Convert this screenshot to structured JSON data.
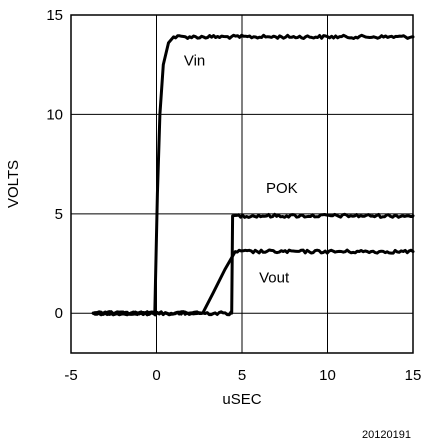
{
  "chart_data": {
    "type": "line",
    "title": "",
    "xlabel": "uSEC",
    "ylabel": "VOLTS",
    "xlim": [
      -5,
      15
    ],
    "ylim": [
      -2,
      15
    ],
    "grid": true,
    "x_ticks": [
      -5,
      0,
      5,
      10,
      15
    ],
    "x_tick_labels": [
      "-5",
      "0",
      "5",
      "10",
      "15"
    ],
    "y_ticks": [
      0,
      5,
      10,
      15
    ],
    "y_tick_labels": [
      "0",
      "5",
      "10",
      "15"
    ],
    "series": [
      {
        "name": "Vin",
        "points": [
          [
            -3.7,
            0
          ],
          [
            -0.1,
            0
          ],
          [
            0.05,
            6
          ],
          [
            0.2,
            10
          ],
          [
            0.4,
            12.5
          ],
          [
            0.7,
            13.6
          ],
          [
            1.0,
            13.9
          ],
          [
            15,
            13.9
          ]
        ]
      },
      {
        "name": "POK",
        "points": [
          [
            -3.7,
            0
          ],
          [
            4.4,
            0
          ],
          [
            4.45,
            4.9
          ],
          [
            15,
            4.9
          ]
        ]
      },
      {
        "name": "Vout",
        "points": [
          [
            -3.7,
            0
          ],
          [
            2.7,
            0
          ],
          [
            3.3,
            1.0
          ],
          [
            4.0,
            2.2
          ],
          [
            4.6,
            3.1
          ],
          [
            15,
            3.1
          ]
        ]
      }
    ],
    "annotations": [
      {
        "text": "Vin",
        "x": 1.6,
        "y": 12.7
      },
      {
        "text": "POK",
        "x": 6.4,
        "y": 6.3
      },
      {
        "text": "Vout",
        "x": 6.0,
        "y": 1.8
      }
    ],
    "figure_id": "20120191"
  }
}
